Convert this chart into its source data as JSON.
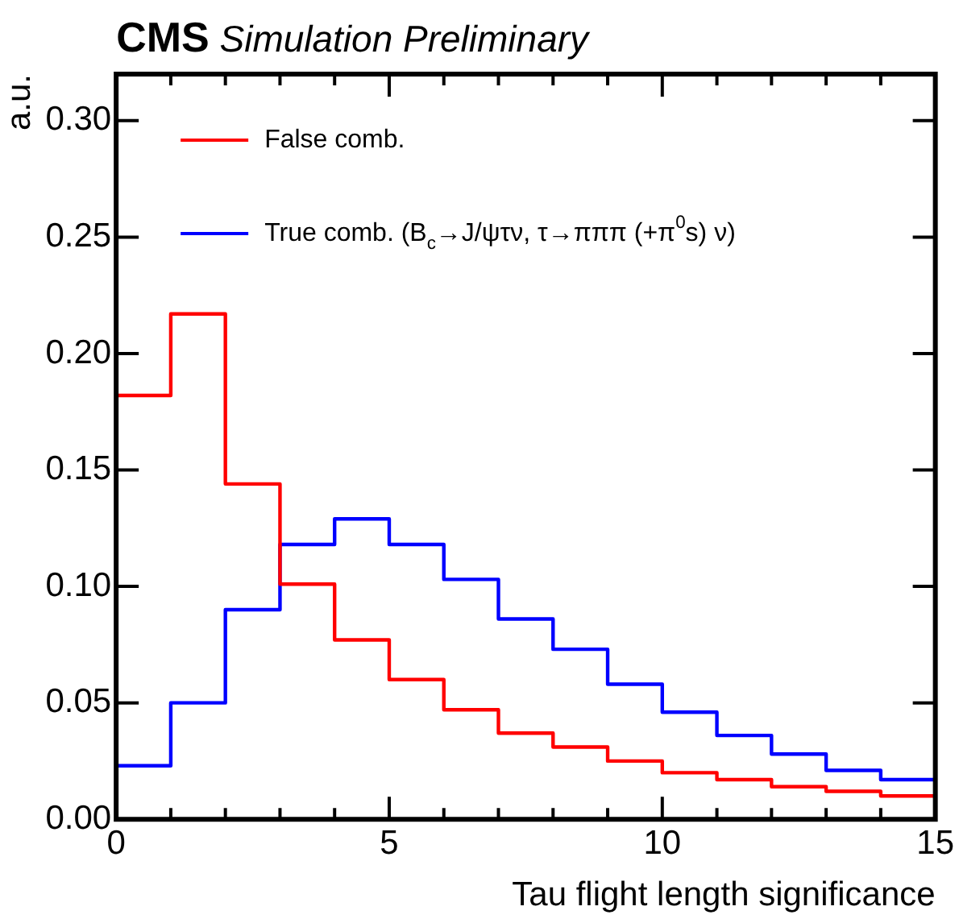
{
  "chart_data": {
    "type": "histogram",
    "title": "CMS Simulation Preliminary",
    "xlabel": "Tau flight length significance",
    "ylabel": "a.u.",
    "bins": [
      0,
      1,
      2,
      3,
      4,
      5,
      6,
      7,
      8,
      9,
      10,
      11,
      12,
      13,
      14,
      15
    ],
    "series": [
      {
        "name": "False comb.",
        "color": "#ff0000",
        "values": [
          0.182,
          0.217,
          0.144,
          0.101,
          0.077,
          0.06,
          0.047,
          0.037,
          0.031,
          0.025,
          0.02,
          0.017,
          0.014,
          0.012,
          0.01
        ]
      },
      {
        "name": "True comb. (B$_{c}$→J/ψτν, τ→πππ (+π$^{0}$s) ν)",
        "color": "#0000ff",
        "values": [
          0.023,
          0.05,
          0.09,
          0.118,
          0.129,
          0.118,
          0.103,
          0.086,
          0.073,
          0.058,
          0.046,
          0.036,
          0.028,
          0.021,
          0.017
        ]
      }
    ],
    "xlim": [
      0,
      15
    ],
    "xticks": [
      0,
      {
        "value": 1,
        "label": null
      },
      {
        "value": 2,
        "label": null
      },
      {
        "value": 3,
        "label": null
      },
      {
        "value": 4,
        "label": null
      },
      5,
      {
        "value": 6,
        "label": null
      },
      {
        "value": 7,
        "label": null
      },
      {
        "value": 8,
        "label": null
      },
      {
        "value": 9,
        "label": null
      },
      10,
      {
        "value": 11,
        "label": null
      },
      {
        "value": 12,
        "label": null
      },
      {
        "value": 13,
        "label": null
      },
      {
        "value": 14,
        "label": null
      },
      15
    ],
    "ylim": [
      0,
      0.32
    ],
    "yticks": [
      {
        "value": 0,
        "label": "0.00"
      },
      {
        "value": 0.05,
        "label": "0.05"
      },
      {
        "value": 0.1,
        "label": "0.10"
      },
      {
        "value": 0.15,
        "label": "0.15"
      },
      {
        "value": 0.2,
        "label": "0.20"
      },
      {
        "value": 0.25,
        "label": "0.25"
      },
      {
        "value": 0.3,
        "label": "0.30"
      }
    ],
    "grid": false,
    "legend": "top left",
    "line_style": "solid",
    "marker": "none"
  }
}
